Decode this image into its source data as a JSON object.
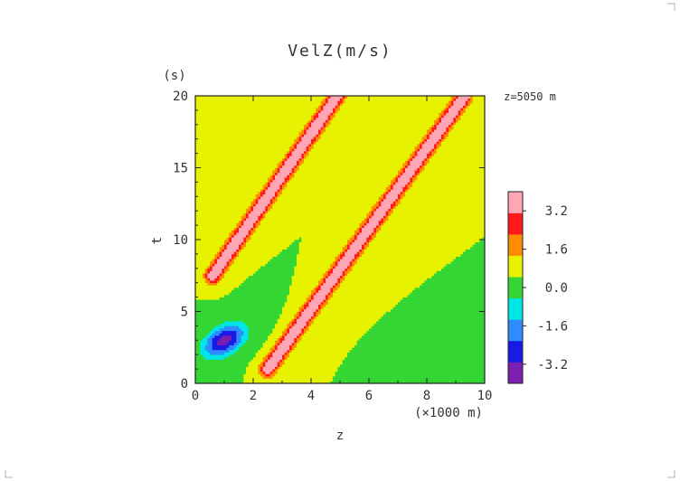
{
  "chart_data": {
    "type": "heatmap",
    "title": "VelZ(m/s)",
    "xlabel": "z",
    "x_unit": "(×1000 m)",
    "ylabel": "t",
    "y_unit": "(s)",
    "annotation": "z=5050 m",
    "xlim": [
      0,
      10
    ],
    "ylim": [
      0,
      20
    ],
    "x_ticks": [
      "0",
      "2",
      "4",
      "6",
      "8",
      "10"
    ],
    "y_ticks": [
      "0",
      "5",
      "10",
      "15",
      "20"
    ],
    "grid": false,
    "colorbar": {
      "labels": [
        "3.2",
        "1.6",
        "0.0",
        "-1.6",
        "-3.2"
      ],
      "label_values": [
        3.2,
        1.6,
        0.0,
        -1.6,
        -3.2
      ],
      "levels": [
        -4.0,
        -3.2,
        -2.4,
        -1.6,
        -0.8,
        0.0,
        0.8,
        1.6,
        2.4,
        3.2,
        4.0
      ],
      "colors": [
        "#7a1fb0",
        "#1a1ae6",
        "#2f8cff",
        "#00e6e6",
        "#34d634",
        "#e6f200",
        "#ff8c00",
        "#ff1a1a",
        "#ffa6b4"
      ]
    },
    "features": [
      {
        "name": "upward wave front from right source",
        "kind": "positive ridge",
        "peak": 3.5,
        "z_start": 2.5,
        "t_start": 1.0,
        "z_end": 9.3,
        "t_end": 20.0
      },
      {
        "name": "reflected wave front",
        "kind": "positive ridge",
        "peak": 3.5,
        "z_start": 0.6,
        "t_start": 7.5,
        "z_end": 4.9,
        "t_end": 20.0
      },
      {
        "name": "source pulse",
        "kind": "negative blob",
        "peak": -3.6,
        "z": 1.0,
        "t": 3.0
      },
      {
        "name": "background",
        "kind": "near zero",
        "value": 0.0
      }
    ]
  }
}
